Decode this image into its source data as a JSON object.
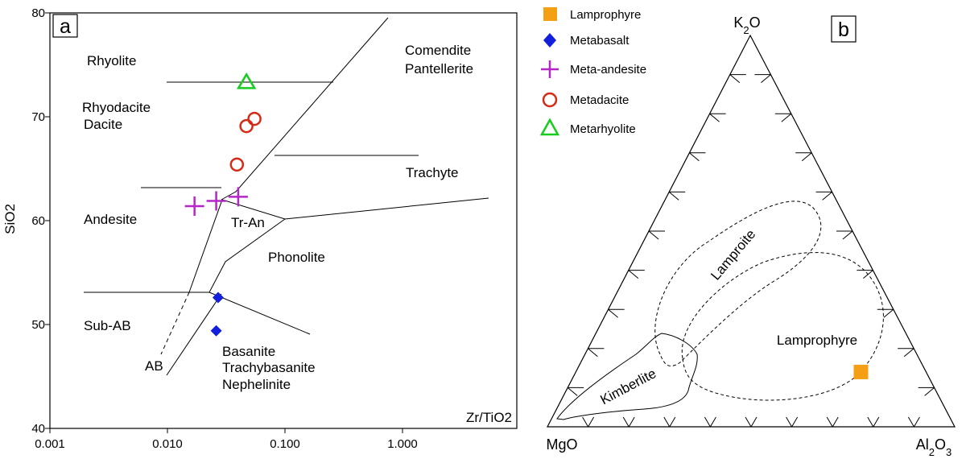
{
  "chart_data": [
    {
      "panel": "a",
      "type": "scatter",
      "title": "",
      "xlabel": "Zr/TiO2",
      "ylabel": "SiO2",
      "x_scale": "log",
      "xlim": [
        0.001,
        5
      ],
      "ylim": [
        40,
        80
      ],
      "x_ticks": [
        "0.001",
        "0.010",
        "0.100",
        "1.000"
      ],
      "y_ticks": [
        "40",
        "50",
        "60",
        "70",
        "80"
      ],
      "fields": [
        "Rhyolite",
        "Comendite",
        "Pantellerite",
        "Rhyodacite",
        "Dacite",
        "Trachyte",
        "Andesite",
        "Tr-An",
        "Phonolite",
        "Sub-AB",
        "AB",
        "Basanite",
        "Trachybasanite",
        "Nephelinite"
      ],
      "series": [
        {
          "name": "Metabasalt",
          "points": [
            [
              0.027,
              52.6
            ],
            [
              0.026,
              49.4
            ]
          ]
        },
        {
          "name": "Meta-andesite",
          "points": [
            [
              0.017,
              61.4
            ],
            [
              0.026,
              61.9
            ],
            [
              0.04,
              62.3
            ]
          ]
        },
        {
          "name": "Metadacite",
          "points": [
            [
              0.047,
              69.1
            ],
            [
              0.055,
              69.8
            ],
            [
              0.039,
              65.4
            ]
          ]
        },
        {
          "name": "Metarhyolite",
          "points": [
            [
              0.047,
              73.3
            ]
          ]
        }
      ]
    },
    {
      "panel": "b",
      "type": "ternary",
      "apex_labels": {
        "top": "K2O",
        "left": "MgO",
        "right": "Al2O3"
      },
      "fields": [
        "Lamproite",
        "Lamprophyre",
        "Kimberlite"
      ],
      "series": [
        {
          "name": "Lamprophyre",
          "points": [
            {
              "K2O": 0.14,
              "MgO": 0.16,
              "Al2O3": 0.7
            }
          ]
        }
      ]
    }
  ],
  "legend": {
    "placement": "top-center",
    "items": [
      {
        "label": "Lamprophyre",
        "marker": "square",
        "color": "#f5a014"
      },
      {
        "label": "Metabasalt",
        "marker": "diamond",
        "color": "#1220dd"
      },
      {
        "label": "Meta-andesite",
        "marker": "plus",
        "color": "#b526c7"
      },
      {
        "label": "Metadacite",
        "marker": "circle",
        "color": "#d42a16"
      },
      {
        "label": "Metarhyolite",
        "marker": "triangle",
        "color": "#18cc1e"
      }
    ]
  },
  "panel_labels": {
    "a": "a",
    "b": "b"
  }
}
